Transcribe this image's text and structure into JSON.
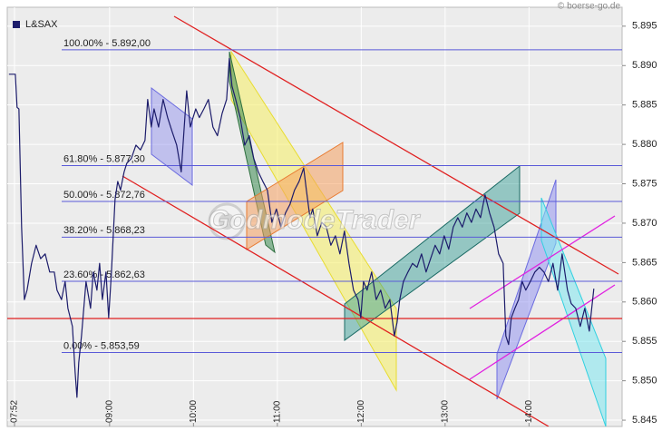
{
  "chart_data": {
    "type": "line",
    "copyright": "© boerse-go.de",
    "watermark": "GodmodeTrader",
    "grid": true,
    "series": [
      {
        "name": "L&SAX",
        "color": "#1c1c6b",
        "values": [
          5.8889,
          5.8889,
          5.8847,
          5.8845,
          5.8695,
          5.8603,
          5.8615,
          5.8649,
          5.8672,
          5.8655,
          5.8661,
          5.8638,
          5.8638,
          5.8615,
          5.8603,
          5.8626,
          5.8592,
          5.8569,
          5.8511,
          5.8479,
          5.8523,
          5.8557,
          5.8626,
          5.8592,
          5.8638,
          5.8615,
          5.8649,
          5.8603,
          5.8638,
          5.858,
          5.8638,
          5.873,
          5.8753,
          5.8742,
          5.8765,
          5.8776,
          5.8782,
          5.8799,
          5.8793,
          5.8805,
          5.8857,
          5.8822,
          5.8845,
          5.8822,
          5.8857,
          5.8834,
          5.8816,
          5.8799,
          5.8765,
          5.8816,
          5.8868,
          5.8822,
          5.8834,
          5.8845,
          5.8834,
          5.8845,
          5.8857,
          5.8822,
          5.8811,
          5.8839,
          5.8857,
          5.8909,
          5.8874,
          5.8857,
          5.8834,
          5.8799,
          5.8811,
          5.8782,
          5.8765,
          5.8753,
          5.8742,
          5.8701,
          5.8718,
          5.8695,
          5.8713,
          5.8724,
          5.8742,
          5.8753,
          5.877,
          5.8742,
          5.8707,
          5.8718,
          5.8684,
          5.8701,
          5.8695,
          5.8672,
          5.8684,
          5.8661,
          5.869,
          5.8649,
          5.8615,
          5.8603,
          5.858,
          5.8626,
          5.8615,
          5.8638,
          5.8603,
          5.8615,
          5.8592,
          5.8603,
          5.8557,
          5.8574,
          5.8603,
          5.8626,
          5.8638,
          5.8649,
          5.8644,
          5.8661,
          5.8638,
          5.8655,
          5.8672,
          5.8661,
          5.8684,
          5.8667,
          5.8695,
          5.8707,
          5.8695,
          5.8713,
          5.8701,
          5.8718,
          5.8707,
          5.8736,
          5.8713,
          5.8695,
          5.8661,
          5.8649,
          5.8557,
          5.8546,
          5.858,
          5.8592,
          5.8603,
          5.8626,
          5.8615,
          5.8626,
          5.8638,
          5.8644,
          5.8638,
          5.8626,
          5.8649,
          5.8615,
          5.8661,
          5.8638,
          5.8615,
          5.8598,
          5.8592,
          5.8569,
          5.8592,
          5.8563,
          5.8617
        ]
      }
    ],
    "x": [
      7.8,
      7.876,
      7.897,
      7.919,
      7.951,
      7.984,
      8.016,
      8.07,
      8.124,
      8.178,
      8.232,
      8.286,
      8.341,
      8.373,
      8.427,
      8.47,
      8.503,
      8.557,
      8.589,
      8.611,
      8.632,
      8.665,
      8.719,
      8.773,
      8.805,
      8.849,
      8.881,
      8.914,
      8.957,
      8.989,
      9.022,
      9.065,
      9.097,
      9.13,
      9.173,
      9.205,
      9.259,
      9.314,
      9.368,
      9.422,
      9.454,
      9.497,
      9.53,
      9.584,
      9.638,
      9.692,
      9.746,
      9.8,
      9.854,
      9.886,
      9.919,
      9.962,
      9.995,
      10.027,
      10.07,
      10.124,
      10.178,
      10.232,
      10.286,
      10.341,
      10.395,
      10.427,
      10.459,
      10.503,
      10.557,
      10.611,
      10.665,
      10.719,
      10.773,
      10.827,
      10.881,
      10.935,
      10.989,
      11.043,
      11.097,
      11.151,
      11.205,
      11.259,
      11.314,
      11.346,
      11.389,
      11.422,
      11.476,
      11.53,
      11.584,
      11.638,
      11.692,
      11.746,
      11.8,
      11.854,
      11.908,
      11.962,
      11.995,
      12.027,
      12.07,
      12.124,
      12.178,
      12.232,
      12.286,
      12.341,
      12.395,
      12.427,
      12.459,
      12.503,
      12.557,
      12.611,
      12.665,
      12.719,
      12.773,
      12.827,
      12.881,
      12.935,
      12.989,
      13.043,
      13.097,
      13.151,
      13.205,
      13.259,
      13.314,
      13.368,
      13.422,
      13.476,
      13.53,
      13.584,
      13.638,
      13.692,
      13.724,
      13.757,
      13.789,
      13.832,
      13.876,
      13.919,
      13.962,
      14.016,
      14.07,
      14.124,
      14.178,
      14.232,
      14.286,
      14.341,
      14.395,
      14.427,
      14.459,
      14.503,
      14.557,
      14.611,
      14.665,
      14.719,
      14.773
    ],
    "xlim": [
      7.78,
      15.11
    ],
    "xticks": [
      {
        "value": 7.8667,
        "label": "07:52"
      },
      {
        "value": 9,
        "label": "09:00"
      },
      {
        "value": 10,
        "label": "10:00"
      },
      {
        "value": 11,
        "label": "11:00"
      },
      {
        "value": 12,
        "label": "12:00"
      },
      {
        "value": 13,
        "label": "13:00"
      },
      {
        "value": 14,
        "label": "14:00"
      }
    ],
    "ylim": [
      5.8442,
      5.8974
    ],
    "yticks": [
      5.845,
      {
        "value": 5.85,
        "label": "5.850"
      },
      5.855,
      {
        "value": 5.86,
        "label": "5.860"
      },
      5.865,
      {
        "value": 5.87,
        "label": "5.870"
      },
      5.875,
      {
        "value": 5.88,
        "label": "5.880"
      },
      5.885,
      {
        "value": 5.89,
        "label": "5.890"
      },
      5.895
    ],
    "annotations": [
      {
        "label": "100.00% - 5.892,00",
        "value": 5.892
      },
      {
        "label": "61.80% - 5.877,30",
        "value": 5.8773
      },
      {
        "label": "50.00% - 5.872,76",
        "value": 5.87276
      },
      {
        "label": "38.20% - 5.868,23",
        "value": 5.86823
      },
      {
        "label": "23.60% - 5.862,63",
        "value": 5.86263
      },
      {
        "label": "0.00% - 5.853,59",
        "value": 5.85359
      }
    ]
  }
}
